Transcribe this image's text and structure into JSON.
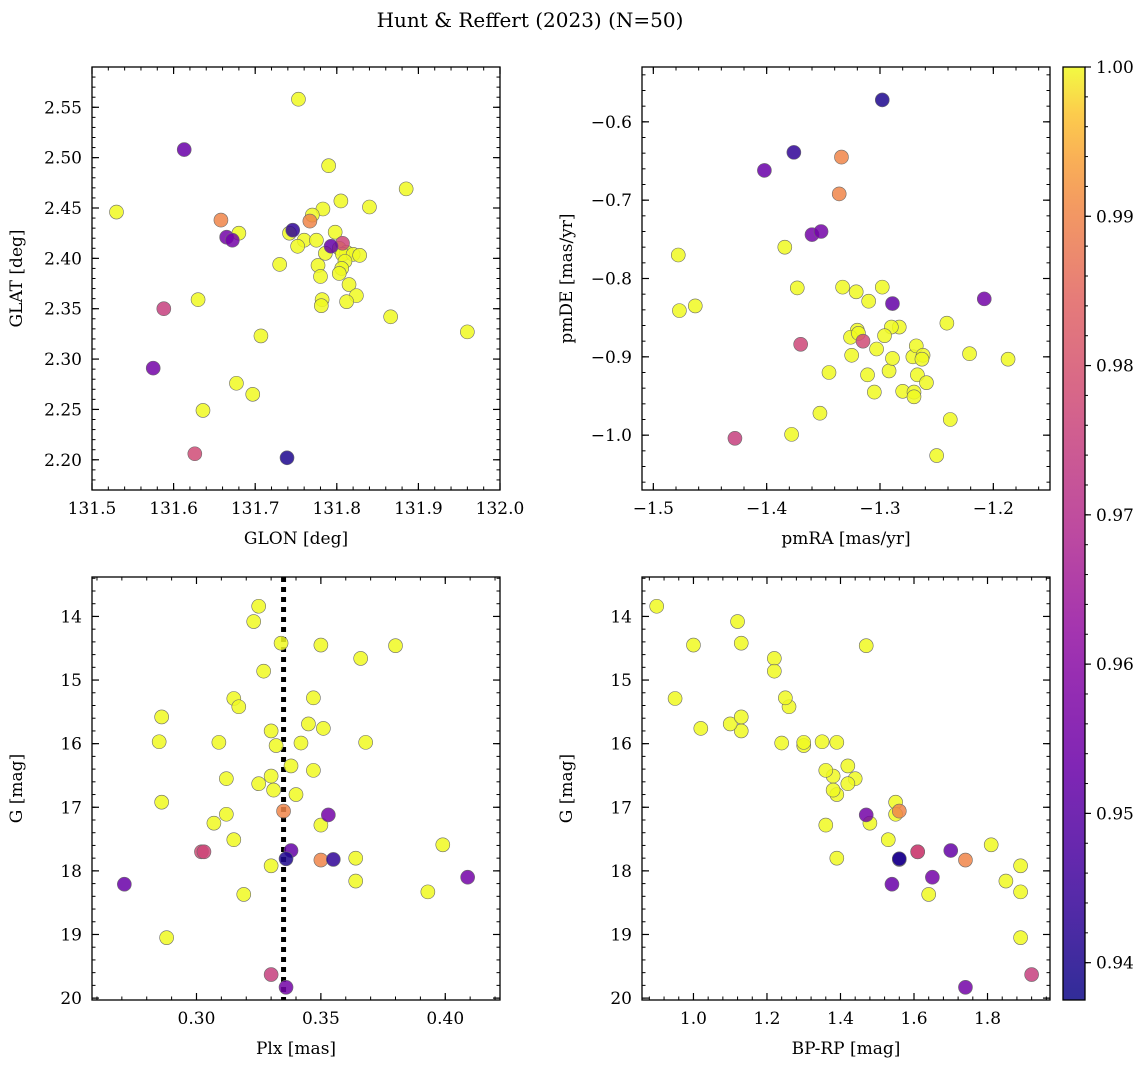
{
  "figure": {
    "suptitle": "Hunt & Reffert (2023) (N=50)"
  },
  "colors": {
    "colormap": "plasma",
    "point_edge": "#6b6b6b",
    "ref_line": "#000000"
  },
  "colorbar": {
    "vmin": 0.9375,
    "vmax": 1.0,
    "ticks": [
      0.94,
      0.95,
      0.96,
      0.97,
      0.98,
      0.99,
      1.0
    ],
    "tick_labels": [
      "0.94",
      "0.95",
      "0.96",
      "0.97",
      "0.98",
      "0.99",
      "1.00"
    ]
  },
  "stars_note_fields": [
    "glon",
    "glat",
    "pmra",
    "pmde",
    "plx",
    "g",
    "bprp",
    "prob"
  ],
  "chart_data": [
    {
      "type": "scatter",
      "id": "sky",
      "xlabel": "GLON [deg]",
      "ylabel": "GLAT [deg]",
      "xlim": [
        131.5,
        132.0
      ],
      "ylim": [
        2.17,
        2.59
      ],
      "invert_y": false,
      "xticks": [
        131.5,
        131.6,
        131.7,
        131.8,
        131.9,
        132.0
      ],
      "xtick_labels": [
        "131.5",
        "131.6",
        "131.7",
        "131.8",
        "131.9",
        "132.0"
      ],
      "yticks": [
        2.2,
        2.25,
        2.3,
        2.35,
        2.4,
        2.45,
        2.5,
        2.55
      ],
      "ytick_labels": [
        "2.20",
        "2.25",
        "2.30",
        "2.35",
        "2.40",
        "2.45",
        "2.50",
        "2.55"
      ],
      "xfield": "glon",
      "yfield": "glat",
      "color_field": "prob",
      "grid": false
    },
    {
      "type": "scatter",
      "id": "pm",
      "xlabel": "pmRA [mas/yr]",
      "ylabel": "pmDE [mas/yr]",
      "xlim": [
        -1.51,
        -1.15
      ],
      "ylim": [
        -1.07,
        -0.53
      ],
      "invert_y": false,
      "xticks": [
        -1.5,
        -1.4,
        -1.3,
        -1.2
      ],
      "xtick_labels": [
        "−1.5",
        "−1.4",
        "−1.3",
        "−1.2"
      ],
      "yticks": [
        -1.0,
        -0.9,
        -0.8,
        -0.7,
        -0.6
      ],
      "ytick_labels": [
        "−1.0",
        "−0.9",
        "−0.8",
        "−0.7",
        "−0.6"
      ],
      "xfield": "pmra",
      "yfield": "pmde",
      "color_field": "prob",
      "grid": false
    },
    {
      "type": "scatter",
      "id": "plx",
      "xlabel": "Plx [mas]",
      "ylabel": "G [mag]",
      "xlim": [
        0.258,
        0.422
      ],
      "ylim": [
        20.03,
        13.38
      ],
      "invert_y": true,
      "xticks": [
        0.3,
        0.35,
        0.4
      ],
      "xtick_labels": [
        "0.30",
        "0.35",
        "0.40"
      ],
      "yticks": [
        14,
        15,
        16,
        17,
        18,
        19,
        20
      ],
      "ytick_labels": [
        "14",
        "15",
        "16",
        "17",
        "18",
        "19",
        "20"
      ],
      "xfield": "plx",
      "yfield": "g",
      "color_field": "prob",
      "vline": 0.335,
      "grid": false
    },
    {
      "type": "scatter",
      "id": "cmd",
      "xlabel": "BP-RP [mag]",
      "ylabel": "G [mag]",
      "xlim": [
        0.86,
        1.97
      ],
      "ylim": [
        20.03,
        13.38
      ],
      "invert_y": true,
      "xticks": [
        1.0,
        1.2,
        1.4,
        1.6,
        1.8
      ],
      "xtick_labels": [
        "1.0",
        "1.2",
        "1.4",
        "1.6",
        "1.8"
      ],
      "yticks": [
        14,
        15,
        16,
        17,
        18,
        19,
        20
      ],
      "ytick_labels": [
        "14",
        "15",
        "16",
        "17",
        "18",
        "19",
        "20"
      ],
      "xfield": "bprp",
      "yfield": "g",
      "color_field": "prob",
      "grid": false
    }
  ],
  "stars": [
    {
      "glon": 131.753,
      "glat": 2.558,
      "pmra": -1.333,
      "pmde": -0.811,
      "plx": 0.325,
      "g": 13.84,
      "bprp": 0.9,
      "prob": 1.0
    },
    {
      "glon": 131.613,
      "glat": 2.508,
      "pmra": -1.402,
      "pmde": -0.662,
      "plx": 0.271,
      "g": 18.21,
      "bprp": 1.54,
      "prob": 0.953
    },
    {
      "glon": 131.79,
      "glat": 2.492,
      "pmra": -1.373,
      "pmde": -0.812,
      "plx": 0.323,
      "g": 14.08,
      "bprp": 1.12,
      "prob": 1.0
    },
    {
      "glon": 131.885,
      "glat": 2.469,
      "pmra": -1.478,
      "pmde": -0.77,
      "plx": 0.334,
      "g": 14.42,
      "bprp": 1.13,
      "prob": 1.0
    },
    {
      "glon": 131.805,
      "glat": 2.457,
      "pmra": -1.384,
      "pmde": -0.76,
      "plx": 0.35,
      "g": 14.45,
      "bprp": 1.0,
      "prob": 1.0
    },
    {
      "glon": 131.84,
      "glat": 2.451,
      "pmra": -1.298,
      "pmde": -0.811,
      "plx": 0.366,
      "g": 14.66,
      "bprp": 1.22,
      "prob": 1.0
    },
    {
      "glon": 131.783,
      "glat": 2.449,
      "pmra": -1.463,
      "pmde": -0.835,
      "plx": 0.38,
      "g": 14.46,
      "bprp": 1.47,
      "prob": 1.0
    },
    {
      "glon": 131.53,
      "glat": 2.446,
      "pmra": -1.477,
      "pmde": -0.841,
      "plx": 0.327,
      "g": 14.86,
      "bprp": 1.22,
      "prob": 1.0
    },
    {
      "glon": 131.77,
      "glat": 2.443,
      "pmra": -1.31,
      "pmde": -0.829,
      "plx": 0.315,
      "g": 15.29,
      "bprp": 0.95,
      "prob": 1.0
    },
    {
      "glon": 131.658,
      "glat": 2.438,
      "pmra": -1.334,
      "pmde": -0.645,
      "plx": 0.335,
      "g": 17.06,
      "bprp": 1.56,
      "prob": 0.99
    },
    {
      "glon": 131.767,
      "glat": 2.437,
      "pmra": -1.336,
      "pmde": -0.692,
      "plx": 0.35,
      "g": 17.83,
      "bprp": 1.74,
      "prob": 0.99
    },
    {
      "glon": 131.746,
      "glat": 2.428,
      "pmra": -1.376,
      "pmde": -0.639,
      "plx": 0.355,
      "g": 17.82,
      "bprp": 1.56,
      "prob": 0.943
    },
    {
      "glon": 131.68,
      "glat": 2.425,
      "pmra": -1.321,
      "pmde": -0.817,
      "plx": 0.317,
      "g": 15.42,
      "bprp": 1.26,
      "prob": 1.0
    },
    {
      "glon": 131.742,
      "glat": 2.425,
      "pmra": -1.32,
      "pmde": -0.866,
      "plx": 0.347,
      "g": 15.28,
      "bprp": 1.25,
      "prob": 1.0
    },
    {
      "glon": 131.798,
      "glat": 2.426,
      "pmra": -1.283,
      "pmde": -0.862,
      "plx": 0.33,
      "g": 15.8,
      "bprp": 1.13,
      "prob": 1.0
    },
    {
      "glon": 131.665,
      "glat": 2.421,
      "pmra": -1.36,
      "pmde": -0.744,
      "plx": 0.353,
      "g": 17.12,
      "bprp": 1.47,
      "prob": 0.955
    },
    {
      "glon": 131.76,
      "glat": 2.418,
      "pmra": -1.29,
      "pmde": -0.862,
      "plx": 0.345,
      "g": 15.69,
      "bprp": 1.1,
      "prob": 1.0
    },
    {
      "glon": 131.775,
      "glat": 2.418,
      "pmra": -1.326,
      "pmde": -0.875,
      "plx": 0.351,
      "g": 15.76,
      "bprp": 1.02,
      "prob": 1.0
    },
    {
      "glon": 131.807,
      "glat": 2.415,
      "pmra": -1.37,
      "pmde": -0.884,
      "plx": 0.303,
      "g": 17.7,
      "bprp": 1.61,
      "prob": 0.977
    },
    {
      "glon": 131.793,
      "glat": 2.412,
      "pmra": -1.289,
      "pmde": -0.832,
      "plx": 0.338,
      "g": 17.68,
      "bprp": 1.7,
      "prob": 0.952
    },
    {
      "glon": 131.752,
      "glat": 2.412,
      "pmra": -1.319,
      "pmde": -0.87,
      "plx": 0.332,
      "g": 16.03,
      "bprp": 1.3,
      "prob": 1.0
    },
    {
      "glon": 131.803,
      "glat": 2.41,
      "pmra": -1.325,
      "pmde": -0.898,
      "plx": 0.309,
      "g": 15.98,
      "bprp": 1.3,
      "prob": 1.0
    },
    {
      "glon": 131.812,
      "glat": 2.406,
      "pmra": -1.311,
      "pmde": -0.923,
      "plx": 0.285,
      "g": 15.97,
      "bprp": 1.35,
      "prob": 1.0
    },
    {
      "glon": 131.807,
      "glat": 2.404,
      "pmra": -1.303,
      "pmde": -0.89,
      "plx": 0.368,
      "g": 15.98,
      "bprp": 1.39,
      "prob": 1.0
    },
    {
      "glon": 131.82,
      "glat": 2.404,
      "pmra": -1.296,
      "pmde": -0.873,
      "plx": 0.342,
      "g": 15.99,
      "bprp": 1.24,
      "prob": 1.0
    },
    {
      "glon": 131.828,
      "glat": 2.403,
      "pmra": -1.292,
      "pmde": -0.918,
      "plx": 0.338,
      "g": 16.35,
      "bprp": 1.42,
      "prob": 1.0
    },
    {
      "glon": 131.786,
      "glat": 2.405,
      "pmra": -1.289,
      "pmde": -0.902,
      "plx": 0.312,
      "g": 16.55,
      "bprp": 1.44,
      "prob": 1.0
    },
    {
      "glon": 131.81,
      "glat": 2.397,
      "pmra": -1.28,
      "pmde": -0.944,
      "plx": 0.33,
      "g": 16.51,
      "bprp": 1.38,
      "prob": 1.0
    },
    {
      "glon": 131.73,
      "glat": 2.394,
      "pmra": -1.271,
      "pmde": -0.9,
      "plx": 0.347,
      "g": 16.42,
      "bprp": 1.36,
      "prob": 1.0
    },
    {
      "glon": 131.777,
      "glat": 2.393,
      "pmra": -1.268,
      "pmde": -0.886,
      "plx": 0.325,
      "g": 16.63,
      "bprp": 1.42,
      "prob": 1.0
    },
    {
      "glon": 131.806,
      "glat": 2.39,
      "pmra": -1.267,
      "pmde": -0.923,
      "plx": 0.34,
      "g": 16.8,
      "bprp": 1.39,
      "prob": 1.0
    },
    {
      "glon": 131.803,
      "glat": 2.385,
      "pmra": -1.262,
      "pmde": -0.898,
      "plx": 0.331,
      "g": 16.73,
      "bprp": 1.38,
      "prob": 1.0
    },
    {
      "glon": 131.78,
      "glat": 2.382,
      "pmra": -1.263,
      "pmde": -0.903,
      "plx": 0.286,
      "g": 16.92,
      "bprp": 1.55,
      "prob": 1.0
    },
    {
      "glon": 131.815,
      "glat": 2.374,
      "pmra": -1.27,
      "pmde": -0.945,
      "plx": 0.312,
      "g": 17.11,
      "bprp": 1.55,
      "prob": 1.0
    },
    {
      "glon": 131.824,
      "glat": 2.363,
      "pmra": -1.27,
      "pmde": -0.951,
      "plx": 0.35,
      "g": 17.28,
      "bprp": 1.36,
      "prob": 1.0
    },
    {
      "glon": 131.782,
      "glat": 2.359,
      "pmra": -1.259,
      "pmde": -0.933,
      "plx": 0.307,
      "g": 17.25,
      "bprp": 1.48,
      "prob": 1.0
    },
    {
      "glon": 131.812,
      "glat": 2.357,
      "pmra": -1.241,
      "pmde": -0.857,
      "plx": 0.315,
      "g": 17.51,
      "bprp": 1.53,
      "prob": 1.0
    },
    {
      "glon": 131.781,
      "glat": 2.353,
      "pmra": -1.353,
      "pmde": -0.972,
      "plx": 0.364,
      "g": 17.8,
      "bprp": 1.39,
      "prob": 1.0
    },
    {
      "glon": 131.588,
      "glat": 2.35,
      "pmra": -1.428,
      "pmde": -1.004,
      "plx": 0.33,
      "g": 19.63,
      "bprp": 1.92,
      "prob": 0.975
    },
    {
      "glon": 131.866,
      "glat": 2.342,
      "pmra": -1.221,
      "pmde": -0.896,
      "plx": 0.33,
      "g": 17.92,
      "bprp": 1.89,
      "prob": 1.0
    },
    {
      "glon": 131.63,
      "glat": 2.359,
      "pmra": -1.187,
      "pmde": -0.903,
      "plx": 0.399,
      "g": 17.59,
      "bprp": 1.81,
      "prob": 1.0
    },
    {
      "glon": 131.96,
      "glat": 2.327,
      "pmra": -1.238,
      "pmde": -0.98,
      "plx": 0.364,
      "g": 18.16,
      "bprp": 1.85,
      "prob": 1.0
    },
    {
      "glon": 131.707,
      "glat": 2.323,
      "pmra": -1.25,
      "pmde": -1.026,
      "plx": 0.393,
      "g": 18.33,
      "bprp": 1.89,
      "prob": 1.0
    },
    {
      "glon": 131.575,
      "glat": 2.291,
      "pmra": -1.208,
      "pmde": -0.826,
      "plx": 0.409,
      "g": 18.1,
      "bprp": 1.65,
      "prob": 0.955
    },
    {
      "glon": 131.677,
      "glat": 2.276,
      "pmra": -1.378,
      "pmde": -0.999,
      "plx": 0.319,
      "g": 18.37,
      "bprp": 1.64,
      "prob": 1.0
    },
    {
      "glon": 131.697,
      "glat": 2.265,
      "pmra": -1.345,
      "pmde": -0.92,
      "plx": 0.288,
      "g": 19.05,
      "bprp": 1.89,
      "prob": 1.0
    },
    {
      "glon": 131.636,
      "glat": 2.249,
      "pmra": -1.305,
      "pmde": -0.945,
      "plx": 0.286,
      "g": 15.58,
      "bprp": 1.13,
      "prob": 1.0
    },
    {
      "glon": 131.626,
      "glat": 2.206,
      "pmra": -1.315,
      "pmde": -0.88,
      "plx": 0.302,
      "g": 17.7,
      "bprp": 1.61,
      "prob": 0.978
    },
    {
      "glon": 131.739,
      "glat": 2.202,
      "pmra": -1.298,
      "pmde": -0.572,
      "plx": 0.336,
      "g": 17.81,
      "bprp": 1.56,
      "prob": 0.94
    },
    {
      "glon": 131.672,
      "glat": 2.418,
      "pmra": -1.352,
      "pmde": -0.74,
      "plx": 0.336,
      "g": 19.83,
      "bprp": 1.74,
      "prob": 0.955
    }
  ]
}
